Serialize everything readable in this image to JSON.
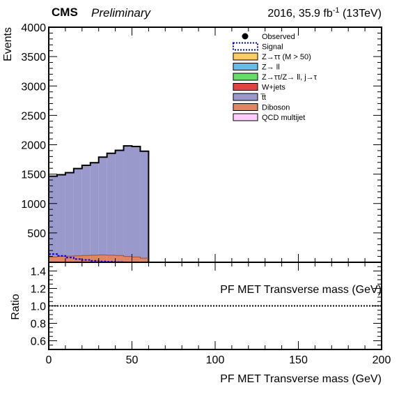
{
  "header": {
    "cms": "CMS",
    "preliminary": "Preliminary",
    "lumi_prefix": "2016, 35.9 fb",
    "lumi_sup": "-1",
    "lumi_suffix": " (13TeV)"
  },
  "colors": {
    "ttbar": "#9999cc",
    "diboson": "#e08566",
    "ztautau": "#ffcc66",
    "zll": "#66bbee",
    "zfake": "#66dd66",
    "wjets": "#dd4444",
    "qcd": "#ffccff",
    "signal": "#0000ee"
  },
  "chart_data": [
    {
      "type": "bar",
      "stacked": true,
      "ylabel": "Events",
      "xlim": [
        0,
        200
      ],
      "ylim": [
        0,
        4000
      ],
      "bin_edges": [
        0,
        5,
        10,
        15,
        20,
        25,
        30,
        35,
        40,
        45,
        50,
        55,
        60
      ],
      "xticks": [
        0,
        50,
        100,
        150,
        200
      ],
      "yticks": [
        500,
        1000,
        1500,
        2000,
        2500,
        3000,
        3500,
        4000
      ],
      "legend_position": "top-right",
      "legend": [
        {
          "label": "Observed",
          "style": "marker",
          "color": "#000000"
        },
        {
          "label": "Signal",
          "style": "dashed",
          "color": "#0000ee"
        },
        {
          "label": "Z→ττ (M > 50)",
          "style": "fill",
          "color": "#ffcc66"
        },
        {
          "label": "Z→ ll",
          "style": "fill",
          "color": "#66bbee"
        },
        {
          "label": "Z→ττ/Z→ ll, j→τ",
          "style": "fill",
          "color": "#66dd66"
        },
        {
          "label": "W+jets",
          "style": "fill",
          "color": "#dd4444"
        },
        {
          "label": "t̅t",
          "style": "fill",
          "color": "#9999cc"
        },
        {
          "label": "Diboson",
          "style": "fill",
          "color": "#e08566"
        },
        {
          "label": "QCD multijet",
          "style": "fill",
          "color": "#ffccff"
        }
      ],
      "series": [
        {
          "name": "Diboson",
          "values": [
            90,
            100,
            105,
            110,
            115,
            120,
            125,
            120,
            115,
            100,
            90,
            70
          ]
        },
        {
          "name": "t̅t",
          "values": [
            1375,
            1390,
            1420,
            1485,
            1535,
            1575,
            1665,
            1735,
            1790,
            1880,
            1880,
            1820
          ]
        }
      ],
      "signal_values": [
        140,
        110,
        80,
        55,
        40,
        25,
        15,
        10,
        5,
        0,
        0,
        0
      ]
    },
    {
      "type": "line",
      "ylabel": "Ratio",
      "xlabel": "PF MET Transverse mass (GeV)",
      "annotation": "PF MET Transverse mass (GeV)",
      "xlim": [
        0,
        200
      ],
      "ylim": [
        0.5,
        1.5
      ],
      "xticks": [
        0,
        50,
        100,
        150,
        200
      ],
      "yticks": [
        0.6,
        0.8,
        1.0,
        1.2,
        1.4
      ],
      "ytick_labels": [
        "0.6",
        "0.8",
        "1.0",
        "1.2",
        "1.4"
      ],
      "reference_line": 1.0
    }
  ]
}
